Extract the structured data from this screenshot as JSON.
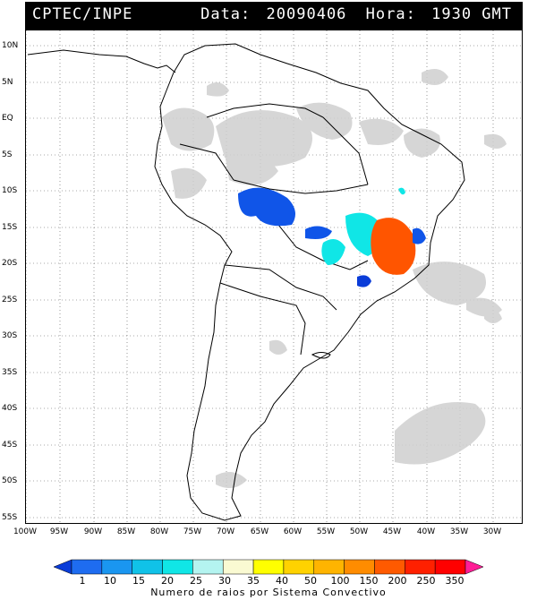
{
  "header": {
    "agency": "CPTEC/INPE",
    "date_label": "Data:",
    "date_value": "20090406",
    "time_label": "Hora:",
    "time_value": "1930 GMT"
  },
  "map": {
    "lat_labels": [
      "10N",
      "5N",
      "EQ",
      "5S",
      "10S",
      "15S",
      "20S",
      "25S",
      "30S",
      "35S",
      "40S",
      "45S",
      "50S",
      "55S"
    ],
    "lon_labels": [
      "100W",
      "95W",
      "90W",
      "85W",
      "80W",
      "75W",
      "70W",
      "65W",
      "60W",
      "55W",
      "50W",
      "45W",
      "40W",
      "35W",
      "30W"
    ]
  },
  "legend": {
    "labels": [
      "1",
      "10",
      "15",
      "20",
      "25",
      "30",
      "35",
      "40",
      "50",
      "100",
      "150",
      "200",
      "250",
      "350"
    ],
    "colors": [
      "#0a3cd8",
      "#1e6cf0",
      "#1a96f0",
      "#10c2e8",
      "#10e6e6",
      "#b4f4f0",
      "#fafad2",
      "#ffff00",
      "#ffd200",
      "#ffb400",
      "#ff8c00",
      "#ff5a00",
      "#ff2000",
      "#ff0000",
      "#ff1e96"
    ],
    "caption": "Numero de raios por Sistema Convectivo"
  },
  "overlay_colors": {
    "cloud": "#cccccc",
    "coast": "#000000",
    "cell_low": "#1055e8",
    "cell_blue": "#0a3cd8",
    "cell_cyan": "#10e6e6",
    "cell_orange": "#ff5500"
  }
}
